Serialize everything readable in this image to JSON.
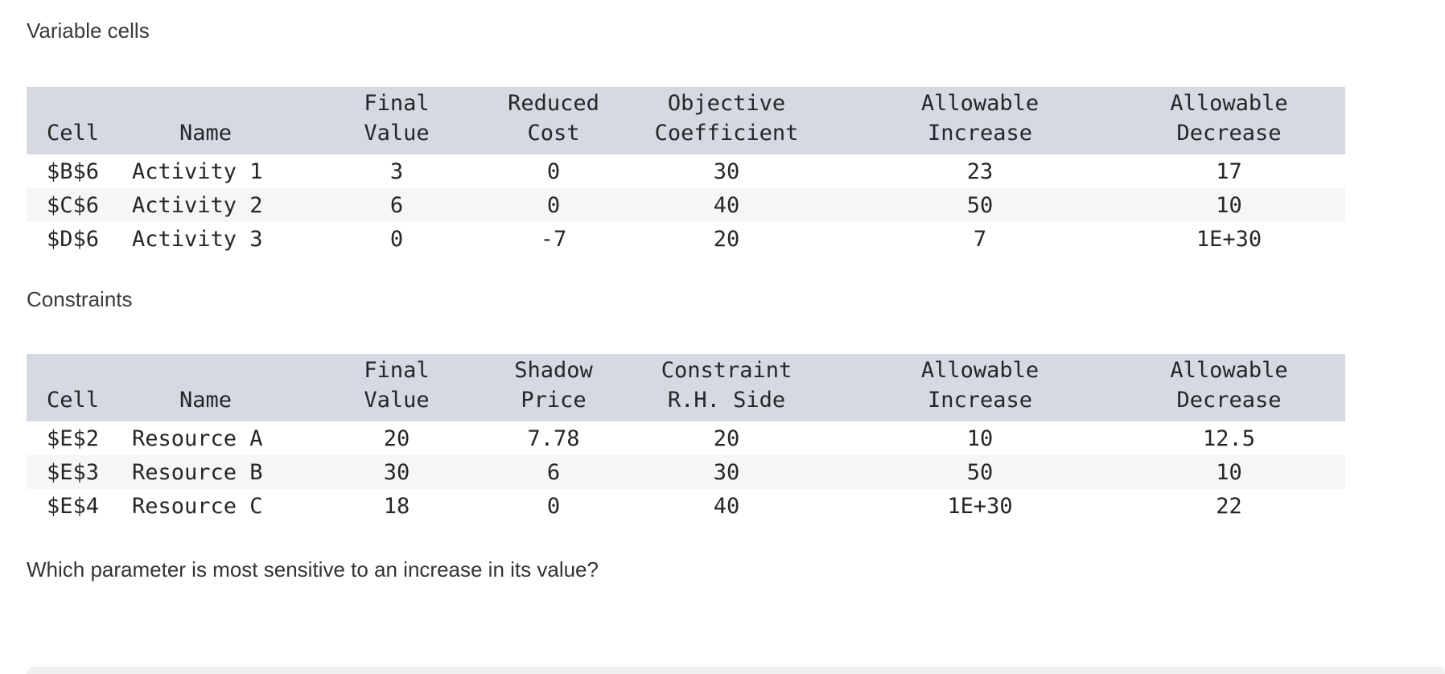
{
  "colors": {
    "table_header_bg": "#d5d9e2",
    "row_stripe_bg": "#f6f6f6",
    "text": "#333333",
    "bottom_bar": "#f0f0f0"
  },
  "question": "Which parameter is most sensitive to an increase in its value?",
  "sections": {
    "variable_cells": {
      "title": "Variable cells",
      "table": {
        "headers": [
          {
            "top": "",
            "bottom": "Cell"
          },
          {
            "top": "",
            "bottom": "Name"
          },
          {
            "top": "Final",
            "bottom": "Value"
          },
          {
            "top": "Reduced",
            "bottom": "Cost"
          },
          {
            "top": "Objective",
            "bottom": "Coefficient"
          },
          {
            "top": "Allowable",
            "bottom": "Increase"
          },
          {
            "top": "Allowable",
            "bottom": "Decrease"
          }
        ],
        "rows": [
          [
            "$B$6",
            "Activity 1",
            "3",
            "0",
            "30",
            "23",
            "17"
          ],
          [
            "$C$6",
            "Activity 2",
            "6",
            "0",
            "40",
            "50",
            "10"
          ],
          [
            "$D$6",
            "Activity 3",
            "0",
            "-7",
            "20",
            "7",
            "1E+30"
          ]
        ]
      }
    },
    "constraints": {
      "title": "Constraints",
      "table": {
        "headers": [
          {
            "top": "",
            "bottom": "Cell"
          },
          {
            "top": "",
            "bottom": "Name"
          },
          {
            "top": "Final",
            "bottom": "Value"
          },
          {
            "top": "Shadow",
            "bottom": "Price"
          },
          {
            "top": "Constraint",
            "bottom": "R.H. Side"
          },
          {
            "top": "Allowable",
            "bottom": "Increase"
          },
          {
            "top": "Allowable",
            "bottom": "Decrease"
          }
        ],
        "rows": [
          [
            "$E$2",
            "Resource A",
            "20",
            "7.78",
            "20",
            "10",
            "12.5"
          ],
          [
            "$E$3",
            "Resource B",
            "30",
            "6",
            "30",
            "50",
            "10"
          ],
          [
            "$E$4",
            "Resource C",
            "18",
            "0",
            "40",
            "1E+30",
            "22"
          ]
        ]
      }
    }
  }
}
